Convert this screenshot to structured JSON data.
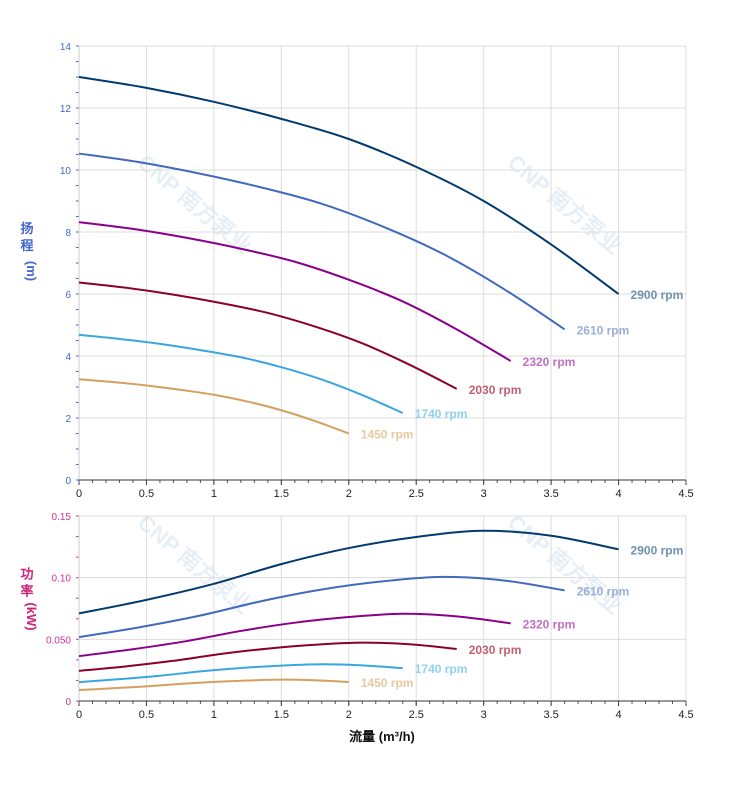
{
  "chart_data": [
    {
      "type": "line",
      "title": "",
      "xlabel": "流量 (m³/h)",
      "ylabel": "扬程 (m)",
      "ylabel_chars": [
        "扬",
        "程",
        "(m)"
      ],
      "xlim": [
        0,
        4.5
      ],
      "ylim": [
        0,
        14
      ],
      "xticks": [
        "0",
        "0.5",
        "1",
        "1.5",
        "2",
        "2.5",
        "3",
        "3.5",
        "4",
        "4.5"
      ],
      "yticks": [
        "0",
        "2",
        "4",
        "6",
        "8",
        "10",
        "12",
        "14"
      ],
      "grid": true,
      "series": [
        {
          "name": "2900 rpm",
          "color": "#003a6e",
          "label_color": "#6f90b0",
          "x": [
            0,
            0.5,
            1,
            1.5,
            2,
            2.5,
            3,
            3.5,
            4
          ],
          "y": [
            13,
            12.65,
            12.2,
            11.65,
            11.0,
            10.1,
            9.0,
            7.6,
            6.0
          ]
        },
        {
          "name": "2610 rpm",
          "color": "#4169c0",
          "label_color": "#9aaed8",
          "x": [
            0,
            0.45,
            0.9,
            1.35,
            1.8,
            2.25,
            2.7,
            3.15,
            3.6
          ],
          "y": [
            10.53,
            10.25,
            9.88,
            9.44,
            8.91,
            8.18,
            7.29,
            6.16,
            4.86
          ]
        },
        {
          "name": "2320 rpm",
          "color": "#8b008b",
          "label_color": "#c070c0",
          "x": [
            0,
            0.4,
            0.8,
            1.2,
            1.6,
            2.0,
            2.4,
            2.8,
            3.2
          ],
          "y": [
            8.32,
            8.1,
            7.81,
            7.46,
            7.04,
            6.46,
            5.76,
            4.86,
            3.84
          ]
        },
        {
          "name": "2030 rpm",
          "color": "#8b0028",
          "label_color": "#c06070",
          "x": [
            0,
            0.35,
            0.7,
            1.05,
            1.4,
            1.75,
            2.1,
            2.45,
            2.8
          ],
          "y": [
            6.37,
            6.2,
            5.98,
            5.71,
            5.39,
            4.95,
            4.41,
            3.72,
            2.94
          ]
        },
        {
          "name": "1740 rpm",
          "color": "#3aa6e0",
          "label_color": "#90d0f0",
          "x": [
            0,
            0.3,
            0.6,
            0.9,
            1.2,
            1.5,
            1.8,
            2.1,
            2.4
          ],
          "y": [
            4.68,
            4.55,
            4.39,
            4.19,
            3.96,
            3.64,
            3.24,
            2.74,
            2.16
          ]
        },
        {
          "name": "1450 rpm",
          "color": "#d4a060",
          "label_color": "#e8c8a0",
          "x": [
            0,
            0.25,
            0.5,
            0.75,
            1,
            1.25,
            1.5,
            1.75,
            2
          ],
          "y": [
            3.25,
            3.16,
            3.05,
            2.91,
            2.75,
            2.53,
            2.25,
            1.9,
            1.5
          ]
        }
      ]
    },
    {
      "type": "line",
      "title": "",
      "xlabel": "流量 (m³/h)",
      "ylabel": "功率 (kW)",
      "ylabel_chars": [
        "功",
        "率",
        "(kW)"
      ],
      "xlim": [
        0,
        4.5
      ],
      "ylim": [
        0,
        0.15
      ],
      "xticks": [
        "0",
        "0.5",
        "1",
        "1.5",
        "2",
        "2.5",
        "3",
        "3.5",
        "4",
        "4.5"
      ],
      "yticks": [
        "0",
        "0.050",
        "0.10",
        "0.15"
      ],
      "grid": true,
      "series": [
        {
          "name": "2900 rpm",
          "color": "#003a6e",
          "label_color": "#6f90b0",
          "x": [
            0,
            0.5,
            1,
            1.5,
            2,
            2.5,
            3,
            3.5,
            4
          ],
          "y": [
            0.071,
            0.082,
            0.095,
            0.111,
            0.124,
            0.133,
            0.138,
            0.134,
            0.123
          ]
        },
        {
          "name": "2610 rpm",
          "color": "#4169c0",
          "label_color": "#9aaed8",
          "x": [
            0,
            0.45,
            0.9,
            1.35,
            1.8,
            2.25,
            2.7,
            3.15,
            3.6
          ],
          "y": [
            0.0518,
            0.0598,
            0.0693,
            0.0809,
            0.0904,
            0.097,
            0.1006,
            0.0977,
            0.0897
          ]
        },
        {
          "name": "2320 rpm",
          "color": "#8b008b",
          "label_color": "#c070c0",
          "x": [
            0,
            0.4,
            0.8,
            1.2,
            1.6,
            2.0,
            2.4,
            2.8,
            3.2
          ],
          "y": [
            0.0364,
            0.042,
            0.0486,
            0.0568,
            0.0635,
            0.0681,
            0.0707,
            0.0686,
            0.063
          ]
        },
        {
          "name": "2030 rpm",
          "color": "#8b0028",
          "label_color": "#c06070",
          "x": [
            0,
            0.35,
            0.7,
            1.05,
            1.4,
            1.75,
            2.1,
            2.45,
            2.8
          ],
          "y": [
            0.0244,
            0.0281,
            0.0326,
            0.0381,
            0.0425,
            0.0456,
            0.0473,
            0.046,
            0.0422
          ]
        },
        {
          "name": "1740 rpm",
          "color": "#3aa6e0",
          "label_color": "#90d0f0",
          "x": [
            0,
            0.3,
            0.6,
            0.9,
            1.2,
            1.5,
            1.8,
            2.1,
            2.4
          ],
          "y": [
            0.0153,
            0.0177,
            0.0205,
            0.024,
            0.0268,
            0.0287,
            0.0298,
            0.0289,
            0.0266
          ]
        },
        {
          "name": "1450 rpm",
          "color": "#d4a060",
          "label_color": "#e8c8a0",
          "x": [
            0,
            0.25,
            0.5,
            0.75,
            1,
            1.25,
            1.5,
            1.75,
            2
          ],
          "y": [
            0.0089,
            0.0103,
            0.0119,
            0.0139,
            0.0155,
            0.0166,
            0.0173,
            0.0168,
            0.0154
          ]
        }
      ]
    }
  ],
  "watermark": "CNP 南方泵业"
}
